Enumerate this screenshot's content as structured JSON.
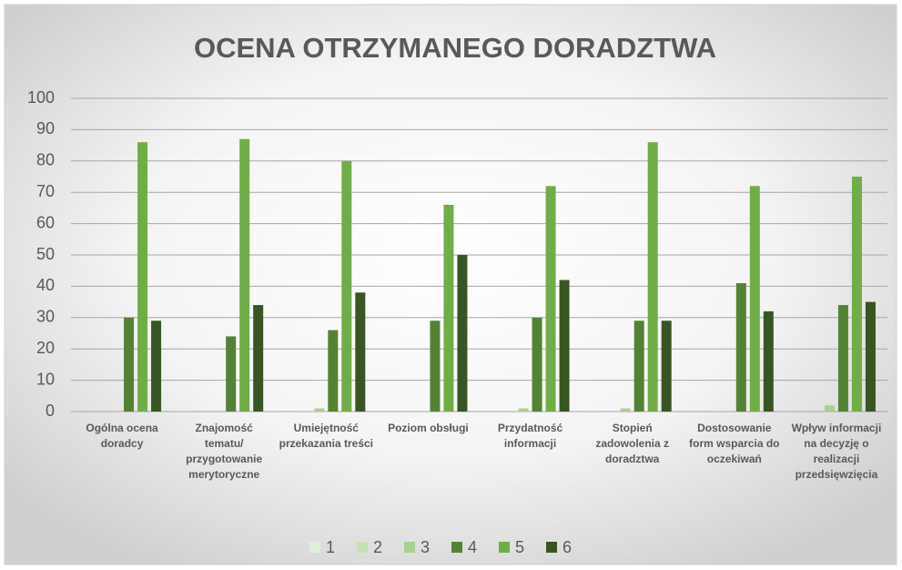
{
  "chart_data": {
    "type": "bar",
    "title": "OCENA OTRZYMANEGO DORADZTWA",
    "categories": [
      "Ogólna ocena doradcy",
      "Znajomość tematu/ przygotowanie merytoryczne",
      "Umiejętność przekazania treści",
      "Poziom obsługi",
      "Przydatność informacji",
      "Stopień zadowolenia z doradztwa",
      "Dostosowanie form wsparcia do oczekiwań",
      "Wpływ informacji na decyzję o realizacji przedsięwzięcia"
    ],
    "series": [
      {
        "name": "1",
        "color": "#e2efda",
        "values": [
          0,
          0,
          0,
          0,
          0,
          0,
          0,
          0
        ]
      },
      {
        "name": "2",
        "color": "#c6e0b4",
        "values": [
          0,
          0,
          0,
          0,
          0,
          0,
          0,
          0
        ]
      },
      {
        "name": "3",
        "color": "#a9d08e",
        "values": [
          0,
          0,
          1,
          0,
          1,
          1,
          0,
          2
        ]
      },
      {
        "name": "4",
        "color": "#548235",
        "values": [
          30,
          24,
          26,
          29,
          30,
          29,
          41,
          34
        ]
      },
      {
        "name": "5",
        "color": "#70ad47",
        "values": [
          86,
          87,
          80,
          66,
          72,
          86,
          72,
          75
        ]
      },
      {
        "name": "6",
        "color": "#375623",
        "values": [
          29,
          34,
          38,
          50,
          42,
          29,
          32,
          35
        ]
      }
    ],
    "ylim": [
      0,
      100
    ],
    "yticks": [
      0,
      10,
      20,
      30,
      40,
      50,
      60,
      70,
      80,
      90,
      100
    ],
    "grid": true,
    "legend": "bottom"
  }
}
